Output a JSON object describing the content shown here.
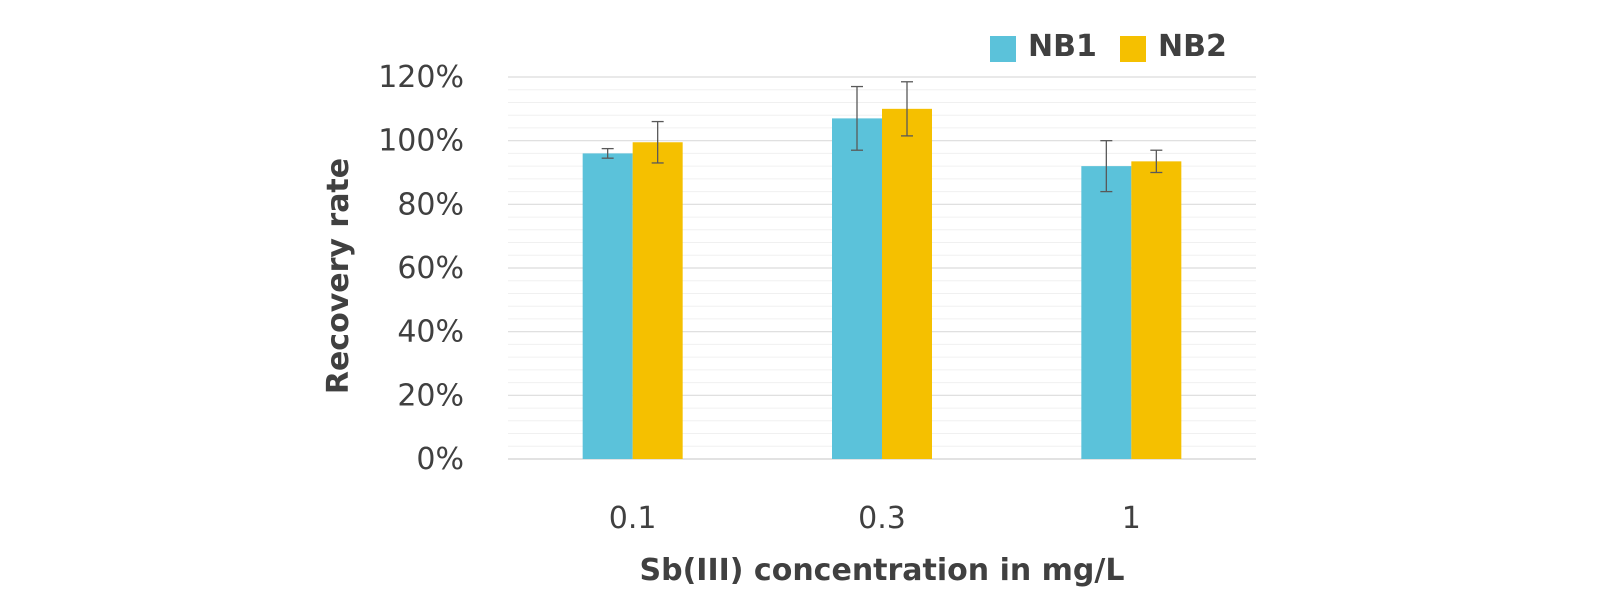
{
  "chart_data": {
    "type": "bar",
    "title": "",
    "xlabel": "Sb(III) concentration in mg/L",
    "ylabel": "Recovery rate",
    "categories": [
      "0.1",
      "0.3",
      "1"
    ],
    "ylim": [
      0,
      120
    ],
    "yticks": [
      0,
      20,
      40,
      60,
      80,
      100,
      120
    ],
    "ytick_labels": [
      "0%",
      "20%",
      "40%",
      "60%",
      "80%",
      "100%",
      "120%"
    ],
    "minor_grid_step": 4,
    "grid": true,
    "legend_position": "top-right",
    "series": [
      {
        "name": "NB1",
        "color": "#5BC2DA",
        "values": [
          96,
          107,
          92
        ],
        "errors": [
          1.5,
          10,
          8
        ]
      },
      {
        "name": "NB2",
        "color": "#F5C000",
        "values": [
          99.5,
          110,
          93.5
        ],
        "errors": [
          6.5,
          8.5,
          3.5
        ]
      }
    ]
  }
}
